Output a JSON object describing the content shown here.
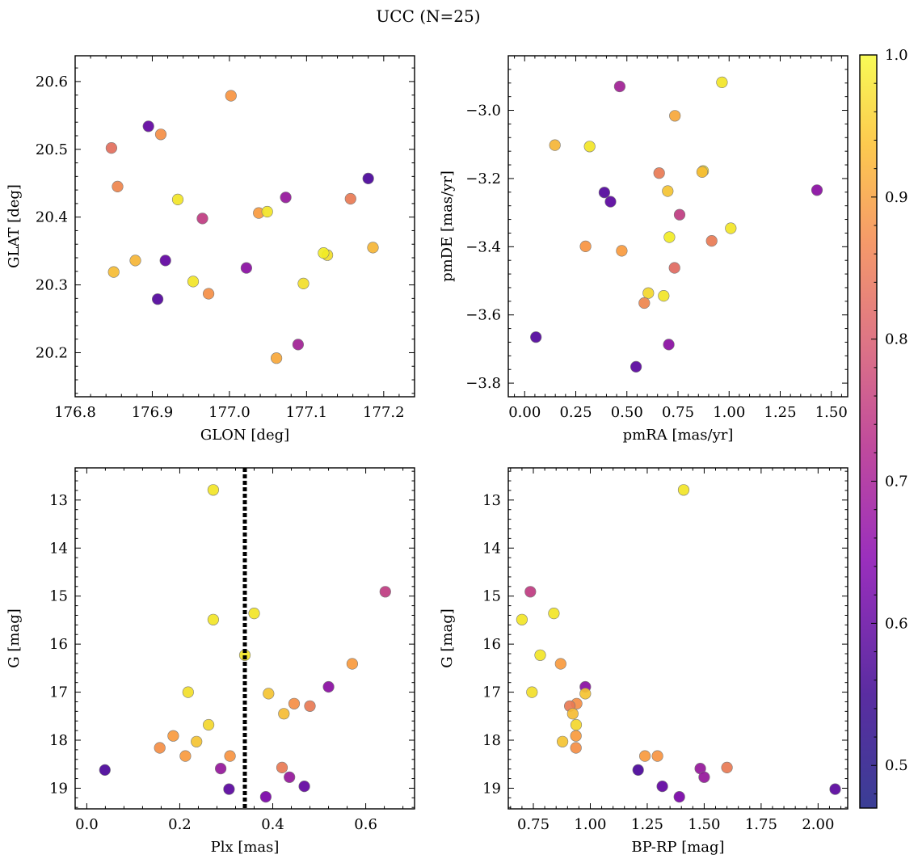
{
  "figure_title": "UCC (N=25)",
  "colorbar": {
    "ticks": [
      "0.5",
      "0.6",
      "0.7",
      "0.8",
      "0.9",
      "1.0"
    ],
    "range": [
      0.47,
      1.0
    ],
    "colormap": "plasma"
  },
  "chart_data": [
    {
      "type": "scatter",
      "xlabel": "GLON [deg]",
      "ylabel": "GLAT [deg]",
      "xlim": [
        176.8,
        177.24
      ],
      "ylim": [
        20.135,
        20.638
      ],
      "xticks": [
        "176.8",
        "176.9",
        "177.0",
        "177.1",
        "177.2"
      ],
      "yticks": [
        "20.2",
        "20.3",
        "20.4",
        "20.5",
        "20.6"
      ],
      "points": [
        {
          "x": 177.002,
          "y": 20.579,
          "c": 0.85
        },
        {
          "x": 176.895,
          "y": 20.534,
          "c": 0.52
        },
        {
          "x": 176.911,
          "y": 20.522,
          "c": 0.84
        },
        {
          "x": 176.847,
          "y": 20.502,
          "c": 0.78
        },
        {
          "x": 177.18,
          "y": 20.457,
          "c": 0.49
        },
        {
          "x": 176.855,
          "y": 20.445,
          "c": 0.82
        },
        {
          "x": 177.073,
          "y": 20.429,
          "c": 0.6
        },
        {
          "x": 177.157,
          "y": 20.427,
          "c": 0.8
        },
        {
          "x": 176.933,
          "y": 20.426,
          "c": 0.97
        },
        {
          "x": 177.038,
          "y": 20.406,
          "c": 0.86
        },
        {
          "x": 177.049,
          "y": 20.408,
          "c": 0.97
        },
        {
          "x": 176.965,
          "y": 20.398,
          "c": 0.68
        },
        {
          "x": 177.186,
          "y": 20.355,
          "c": 0.9
        },
        {
          "x": 177.127,
          "y": 20.344,
          "c": 0.96
        },
        {
          "x": 177.122,
          "y": 20.347,
          "c": 0.98
        },
        {
          "x": 176.878,
          "y": 20.336,
          "c": 0.9
        },
        {
          "x": 176.917,
          "y": 20.336,
          "c": 0.52
        },
        {
          "x": 177.022,
          "y": 20.325,
          "c": 0.58
        },
        {
          "x": 176.85,
          "y": 20.319,
          "c": 0.91
        },
        {
          "x": 176.953,
          "y": 20.305,
          "c": 0.97
        },
        {
          "x": 177.096,
          "y": 20.302,
          "c": 0.96
        },
        {
          "x": 176.973,
          "y": 20.287,
          "c": 0.84
        },
        {
          "x": 176.907,
          "y": 20.279,
          "c": 0.5
        },
        {
          "x": 177.089,
          "y": 20.212,
          "c": 0.62
        },
        {
          "x": 177.061,
          "y": 20.192,
          "c": 0.88
        }
      ]
    },
    {
      "type": "scatter",
      "xlabel": "pmRA [mas/yr]",
      "ylabel": "pmDE [mas/yr]",
      "xlim": [
        -0.08,
        1.58
      ],
      "ylim": [
        -3.84,
        -2.84
      ],
      "xticks": [
        "0.00",
        "0.25",
        "0.50",
        "0.75",
        "1.00",
        "1.25",
        "1.50"
      ],
      "yticks": [
        "−3.8",
        "−3.6",
        "−3.4",
        "−3.2",
        "−3.0"
      ],
      "points": [
        {
          "x": 0.965,
          "y": -2.918,
          "c": 0.97
        },
        {
          "x": 0.465,
          "y": -2.93,
          "c": 0.62
        },
        {
          "x": 0.735,
          "y": -3.016,
          "c": 0.88
        },
        {
          "x": 0.148,
          "y": -3.102,
          "c": 0.9
        },
        {
          "x": 0.318,
          "y": -3.106,
          "c": 0.97
        },
        {
          "x": 0.873,
          "y": -3.178,
          "c": 0.96
        },
        {
          "x": 0.868,
          "y": -3.181,
          "c": 0.91
        },
        {
          "x": 0.658,
          "y": -3.184,
          "c": 0.8
        },
        {
          "x": 0.7,
          "y": -3.237,
          "c": 0.92
        },
        {
          "x": 1.43,
          "y": -3.234,
          "c": 0.58
        },
        {
          "x": 0.39,
          "y": -3.241,
          "c": 0.5
        },
        {
          "x": 0.42,
          "y": -3.268,
          "c": 0.51
        },
        {
          "x": 0.758,
          "y": -3.306,
          "c": 0.68
        },
        {
          "x": 1.008,
          "y": -3.346,
          "c": 0.97
        },
        {
          "x": 0.708,
          "y": -3.372,
          "c": 0.98
        },
        {
          "x": 0.915,
          "y": -3.383,
          "c": 0.8
        },
        {
          "x": 0.298,
          "y": -3.399,
          "c": 0.85
        },
        {
          "x": 0.475,
          "y": -3.412,
          "c": 0.86
        },
        {
          "x": 0.733,
          "y": -3.462,
          "c": 0.77
        },
        {
          "x": 0.605,
          "y": -3.536,
          "c": 0.95
        },
        {
          "x": 0.68,
          "y": -3.544,
          "c": 0.97
        },
        {
          "x": 0.585,
          "y": -3.565,
          "c": 0.82
        },
        {
          "x": 0.055,
          "y": -3.665,
          "c": 0.5
        },
        {
          "x": 0.705,
          "y": -3.687,
          "c": 0.58
        },
        {
          "x": 0.545,
          "y": -3.752,
          "c": 0.51
        }
      ]
    },
    {
      "type": "scatter",
      "xlabel": "Plx [mas]",
      "ylabel": "G [mag]",
      "xlim": [
        -0.025,
        0.705
      ],
      "ylim": [
        19.43,
        12.33
      ],
      "xticks": [
        "0.0",
        "0.2",
        "0.4",
        "0.6"
      ],
      "yticks": [
        "13",
        "14",
        "15",
        "16",
        "17",
        "18",
        "19"
      ],
      "vline": 0.34,
      "points": [
        {
          "x": 0.272,
          "y": 12.79,
          "c": 0.97
        },
        {
          "x": 0.642,
          "y": 14.91,
          "c": 0.68
        },
        {
          "x": 0.36,
          "y": 15.36,
          "c": 0.97
        },
        {
          "x": 0.272,
          "y": 15.49,
          "c": 0.97
        },
        {
          "x": 0.34,
          "y": 16.23,
          "c": 0.97
        },
        {
          "x": 0.571,
          "y": 16.41,
          "c": 0.86
        },
        {
          "x": 0.52,
          "y": 16.89,
          "c": 0.58
        },
        {
          "x": 0.218,
          "y": 17.0,
          "c": 0.96
        },
        {
          "x": 0.391,
          "y": 17.03,
          "c": 0.92
        },
        {
          "x": 0.446,
          "y": 17.24,
          "c": 0.84
        },
        {
          "x": 0.48,
          "y": 17.29,
          "c": 0.8
        },
        {
          "x": 0.424,
          "y": 17.45,
          "c": 0.91
        },
        {
          "x": 0.262,
          "y": 17.68,
          "c": 0.95
        },
        {
          "x": 0.186,
          "y": 17.91,
          "c": 0.86
        },
        {
          "x": 0.236,
          "y": 18.03,
          "c": 0.92
        },
        {
          "x": 0.157,
          "y": 18.16,
          "c": 0.84
        },
        {
          "x": 0.212,
          "y": 18.33,
          "c": 0.86
        },
        {
          "x": 0.308,
          "y": 18.33,
          "c": 0.85
        },
        {
          "x": 0.039,
          "y": 18.62,
          "c": 0.49
        },
        {
          "x": 0.288,
          "y": 18.59,
          "c": 0.6
        },
        {
          "x": 0.42,
          "y": 18.57,
          "c": 0.8
        },
        {
          "x": 0.436,
          "y": 18.77,
          "c": 0.6
        },
        {
          "x": 0.468,
          "y": 18.96,
          "c": 0.52
        },
        {
          "x": 0.306,
          "y": 19.02,
          "c": 0.51
        },
        {
          "x": 0.385,
          "y": 19.18,
          "c": 0.55
        }
      ]
    },
    {
      "type": "scatter",
      "xlabel": "BP-RP [mag]",
      "ylabel": "G [mag]",
      "xlim": [
        0.64,
        2.13
      ],
      "ylim": [
        19.43,
        12.33
      ],
      "xticks": [
        "0.75",
        "1.00",
        "1.25",
        "1.50",
        "1.75",
        "2.00"
      ],
      "yticks": [
        "13",
        "14",
        "15",
        "16",
        "17",
        "18",
        "19"
      ],
      "points": [
        {
          "x": 1.41,
          "y": 12.79,
          "c": 0.97
        },
        {
          "x": 0.737,
          "y": 14.91,
          "c": 0.68
        },
        {
          "x": 0.84,
          "y": 15.36,
          "c": 0.97
        },
        {
          "x": 0.7,
          "y": 15.49,
          "c": 0.97
        },
        {
          "x": 0.78,
          "y": 16.23,
          "c": 0.97
        },
        {
          "x": 0.87,
          "y": 16.41,
          "c": 0.86
        },
        {
          "x": 0.978,
          "y": 16.89,
          "c": 0.58
        },
        {
          "x": 0.744,
          "y": 17.0,
          "c": 0.96
        },
        {
          "x": 0.978,
          "y": 17.03,
          "c": 0.92
        },
        {
          "x": 0.94,
          "y": 17.24,
          "c": 0.84
        },
        {
          "x": 0.91,
          "y": 17.29,
          "c": 0.8
        },
        {
          "x": 0.923,
          "y": 17.45,
          "c": 0.91
        },
        {
          "x": 0.938,
          "y": 17.68,
          "c": 0.95
        },
        {
          "x": 0.937,
          "y": 17.91,
          "c": 0.86
        },
        {
          "x": 0.878,
          "y": 18.03,
          "c": 0.92
        },
        {
          "x": 0.937,
          "y": 18.16,
          "c": 0.84
        },
        {
          "x": 1.24,
          "y": 18.33,
          "c": 0.86
        },
        {
          "x": 1.295,
          "y": 18.33,
          "c": 0.85
        },
        {
          "x": 1.21,
          "y": 18.62,
          "c": 0.49
        },
        {
          "x": 1.483,
          "y": 18.59,
          "c": 0.6
        },
        {
          "x": 1.6,
          "y": 18.57,
          "c": 0.8
        },
        {
          "x": 1.5,
          "y": 18.77,
          "c": 0.6
        },
        {
          "x": 1.316,
          "y": 18.96,
          "c": 0.52
        },
        {
          "x": 2.075,
          "y": 19.02,
          "c": 0.51
        },
        {
          "x": 1.391,
          "y": 19.18,
          "c": 0.55
        }
      ]
    }
  ]
}
